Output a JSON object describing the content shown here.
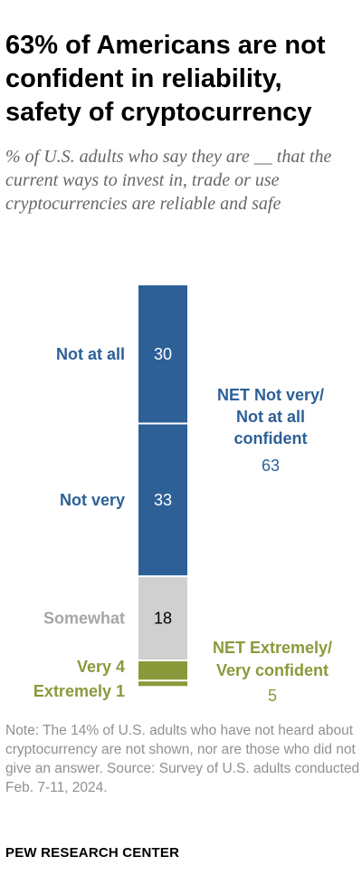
{
  "title": "63% of Americans are not confident in reliability, safety of cryptocurrency",
  "subtitle": "% of U.S. adults who say they are __ that the current ways to invest in, trade or use cryptocurrencies are reliable and safe",
  "note": "Note: The 14% of U.S. adults who have not heard about cryptocurrency are not shown, nor are those who did not give an answer.",
  "source": "Source: Survey of U.S. adults conducted Feb. 7-11, 2024.",
  "org": "PEW RESEARCH CENTER",
  "colors": {
    "not_confident": "#2d6097",
    "somewhat": "#d0d0d0",
    "confident": "#8a9a3b",
    "somewhat_label": "#a6a6a6",
    "value_light": "#ffffff",
    "value_dark": "#000000"
  },
  "chart_data": {
    "type": "bar",
    "orientation": "vertical-stacked",
    "categories": [
      "Not at all",
      "Not very",
      "Somewhat",
      "Very",
      "Extremely"
    ],
    "values": [
      30,
      33,
      18,
      4,
      1
    ],
    "nets": [
      {
        "label": "NET Not very/ Not at all confident",
        "lines": [
          "NET Not very/",
          "Not at all",
          "confident"
        ],
        "value": 63
      },
      {
        "label": "NET Extremely/ Very confident",
        "lines": [
          "NET Extremely/",
          "Very confident"
        ],
        "value": 5
      }
    ]
  }
}
